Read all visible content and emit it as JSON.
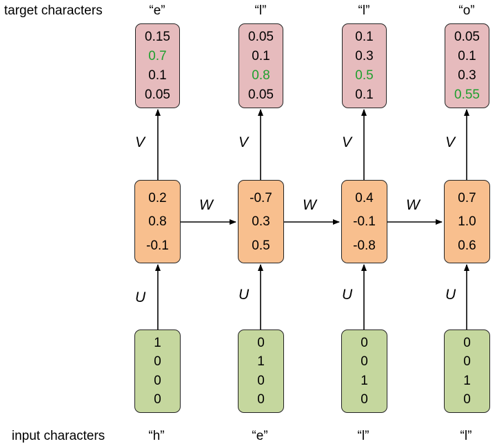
{
  "labels": {
    "target_row": "target characters",
    "input_row": "input characters"
  },
  "matrices": {
    "output": "V",
    "recurrent": "W",
    "input": "U"
  },
  "colors": {
    "output_box": "#e6bbbd",
    "hidden_box": "#f8bf8e",
    "input_box": "#c5d79e",
    "highlight": "#1fa02e"
  },
  "timesteps": [
    {
      "target": "“e”",
      "output": [
        "0.15",
        "0.7",
        "0.1",
        "0.05"
      ],
      "highlight_index": 1,
      "hidden": [
        "0.2",
        "0.8",
        "-0.1"
      ],
      "input": [
        "1",
        "0",
        "0",
        "0"
      ],
      "input_char": "“h”"
    },
    {
      "target": "“l”",
      "output": [
        "0.05",
        "0.1",
        "0.8",
        "0.05"
      ],
      "highlight_index": 2,
      "hidden": [
        "-0.7",
        "0.3",
        "0.5"
      ],
      "input": [
        "0",
        "1",
        "0",
        "0"
      ],
      "input_char": "“e”"
    },
    {
      "target": "“l”",
      "output": [
        "0.1",
        "0.3",
        "0.5",
        "0.1"
      ],
      "highlight_index": 2,
      "hidden": [
        "0.4",
        "-0.1",
        "-0.8"
      ],
      "input": [
        "0",
        "0",
        "1",
        "0"
      ],
      "input_char": "“l”"
    },
    {
      "target": "“o”",
      "output": [
        "0.05",
        "0.1",
        "0.3",
        "0.55"
      ],
      "highlight_index": 3,
      "hidden": [
        "0.7",
        "1.0",
        "0.6"
      ],
      "input": [
        "0",
        "0",
        "1",
        "0"
      ],
      "input_char": "“l”"
    }
  ]
}
